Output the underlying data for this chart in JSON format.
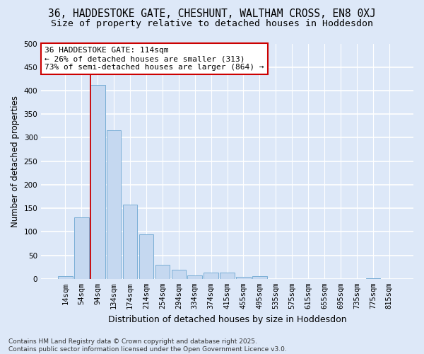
{
  "title": "36, HADDESTOKE GATE, CHESHUNT, WALTHAM CROSS, EN8 0XJ",
  "subtitle": "Size of property relative to detached houses in Hoddesdon",
  "xlabel": "Distribution of detached houses by size in Hoddesdon",
  "ylabel": "Number of detached properties",
  "categories": [
    "14sqm",
    "54sqm",
    "94sqm",
    "134sqm",
    "174sqm",
    "214sqm",
    "254sqm",
    "294sqm",
    "334sqm",
    "374sqm",
    "415sqm",
    "455sqm",
    "495sqm",
    "535sqm",
    "575sqm",
    "615sqm",
    "655sqm",
    "695sqm",
    "735sqm",
    "775sqm",
    "815sqm"
  ],
  "values": [
    5,
    130,
    412,
    316,
    157,
    95,
    30,
    20,
    7,
    14,
    14,
    4,
    6,
    0,
    0,
    0,
    0,
    0,
    0,
    1,
    0
  ],
  "bar_color": "#c5d8f0",
  "bar_edge_color": "#7aaed6",
  "background_color": "#dde8f8",
  "grid_color": "#ffffff",
  "vline_color": "#cc0000",
  "vline_x": 1.55,
  "annotation_line1": "36 HADDESTOKE GATE: 114sqm",
  "annotation_line2": "← 26% of detached houses are smaller (313)",
  "annotation_line3": "73% of semi-detached houses are larger (864) →",
  "annotation_box_facecolor": "#ffffff",
  "annotation_box_edgecolor": "#cc0000",
  "footer_text": "Contains HM Land Registry data © Crown copyright and database right 2025.\nContains public sector information licensed under the Open Government Licence v3.0.",
  "ylim": [
    0,
    500
  ],
  "yticks": [
    0,
    50,
    100,
    150,
    200,
    250,
    300,
    350,
    400,
    450,
    500
  ],
  "title_fontsize": 10.5,
  "subtitle_fontsize": 9.5,
  "ylabel_fontsize": 8.5,
  "xlabel_fontsize": 9,
  "tick_fontsize": 7.5,
  "annotation_fontsize": 8,
  "footer_fontsize": 6.5
}
